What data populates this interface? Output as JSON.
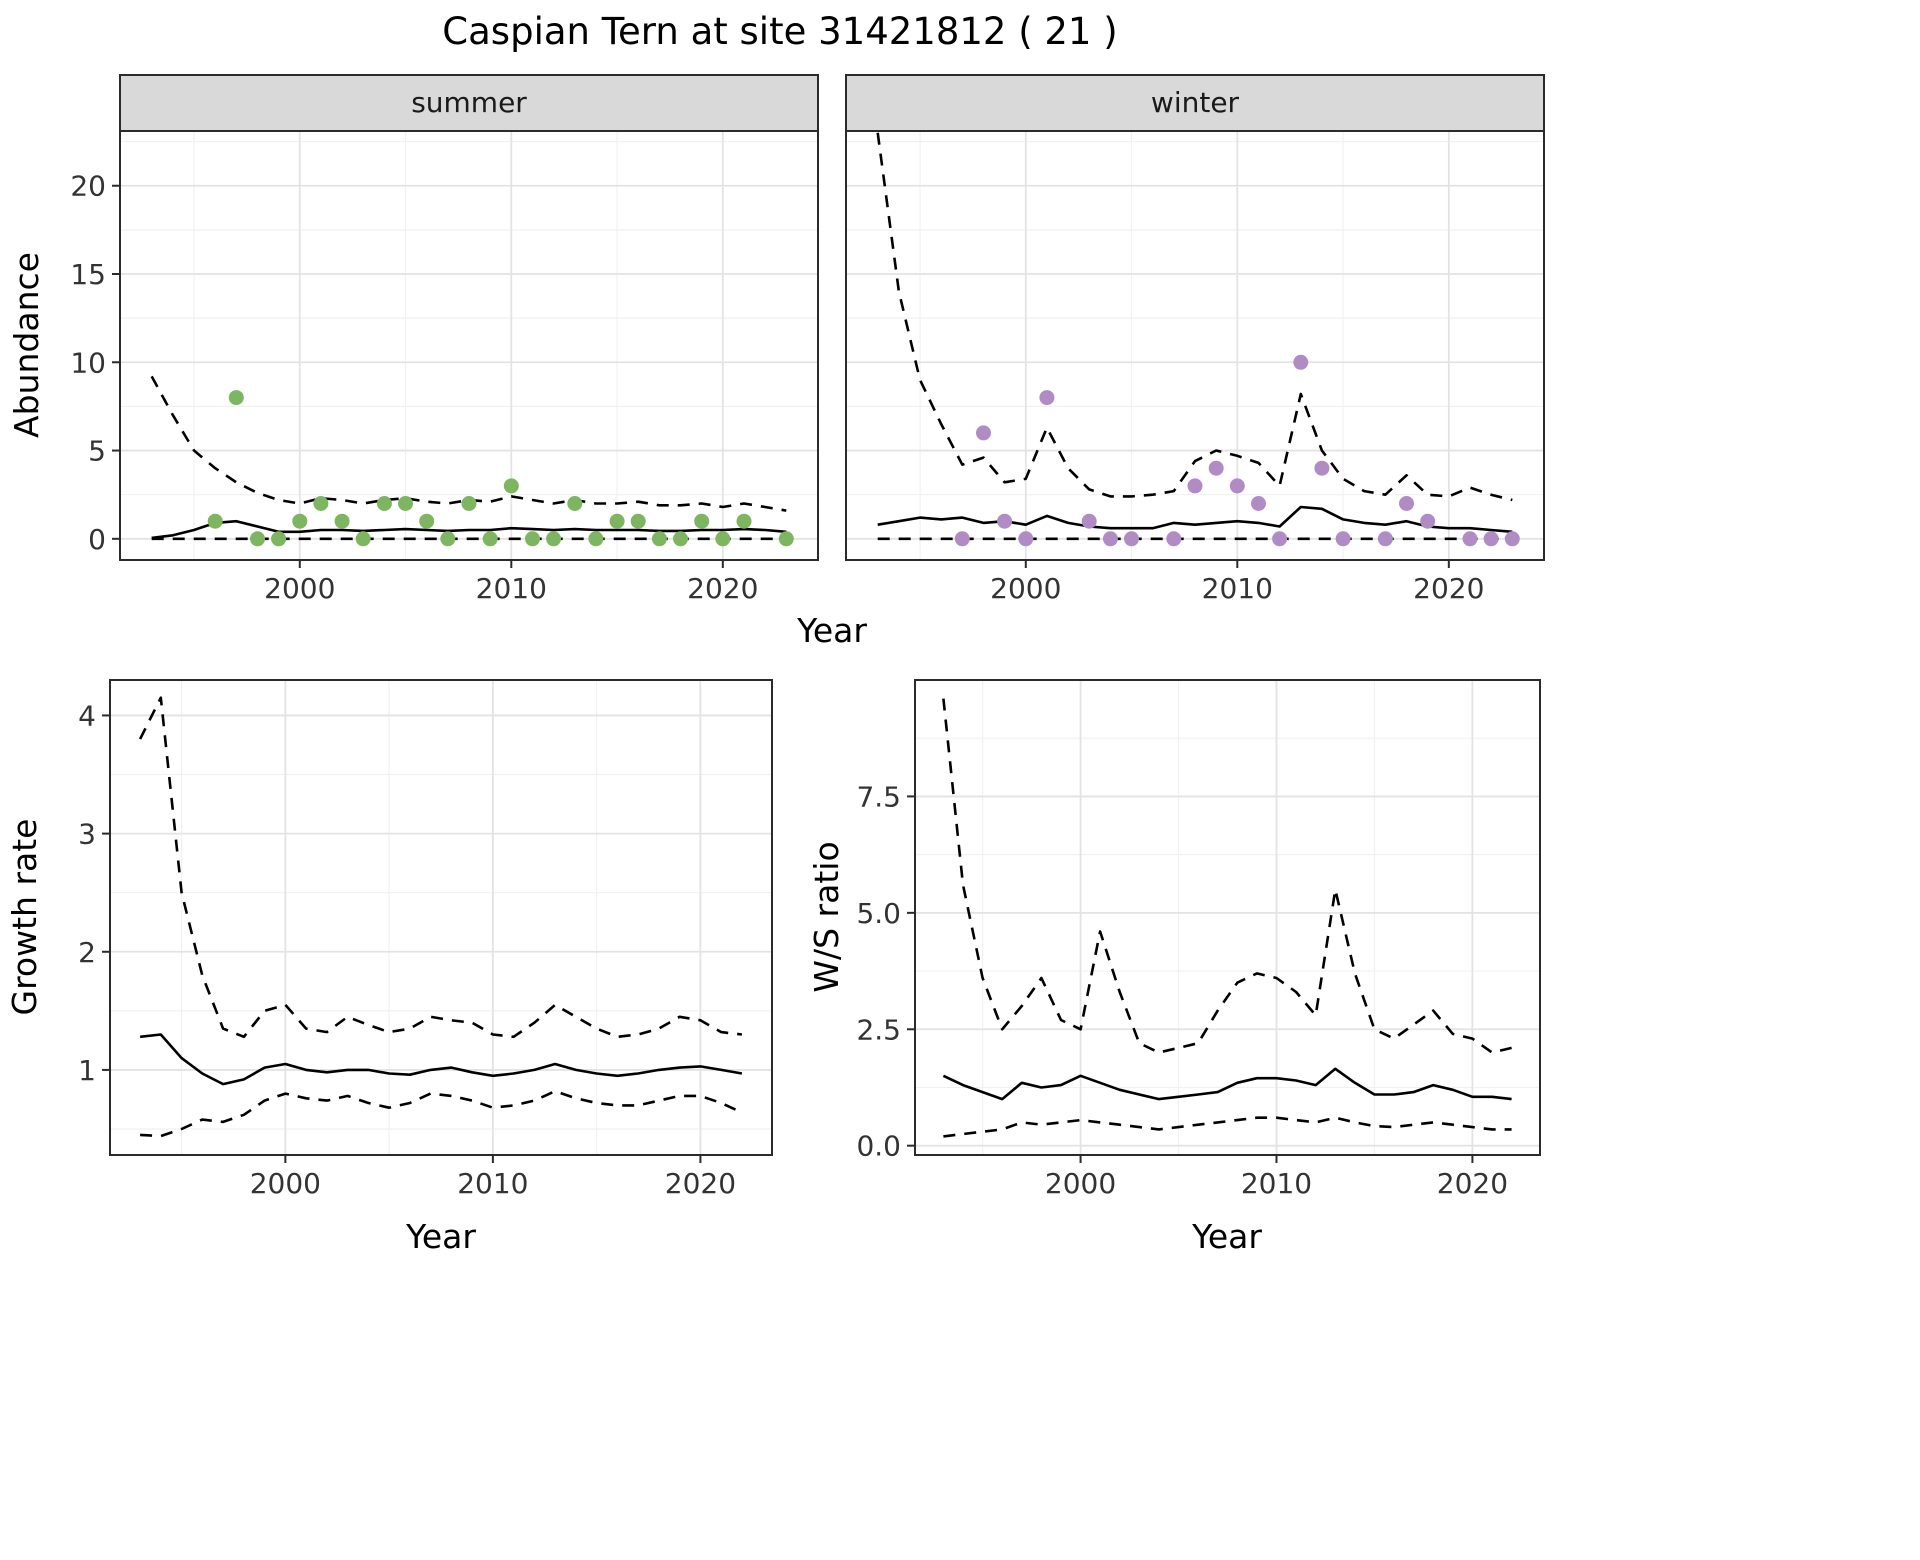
{
  "title": "Caspian Tern at site 31421812 ( 21 )",
  "colors": {
    "summer_points": "#7db560",
    "winter_points": "#b18cc4",
    "line": "#000000",
    "grid_major": "#e3e3e3",
    "grid_minor": "#f1f1f1",
    "panel_border": "#2b2b2b",
    "strip_bg": "#d9d9d9",
    "tick_text": "#333333"
  },
  "chart_data": [
    {
      "id": "abundance-summer",
      "type": "line",
      "facet_label": "summer",
      "xlabel": "Year",
      "ylabel": "Abundance",
      "xlim": [
        1991.5,
        2024.5
      ],
      "ylim": [
        -1.2,
        23.1
      ],
      "xtick_values": [
        2000,
        2010,
        2020
      ],
      "xtick_labels": [
        "2000",
        "2010",
        "2020"
      ],
      "xtick_minor": [
        1995,
        2005,
        2015
      ],
      "ytick_values": [
        0,
        5,
        10,
        15,
        20
      ],
      "ytick_labels": [
        "0",
        "5",
        "10",
        "15",
        "20"
      ],
      "ytick_minor": [
        2.5,
        7.5,
        12.5,
        17.5,
        22.5
      ],
      "series": [
        {
          "name": "upper-ci",
          "style": "dashed",
          "x": [
            1993,
            1994,
            1995,
            1996,
            1997,
            1998,
            1999,
            2000,
            2001,
            2002,
            2003,
            2004,
            2005,
            2006,
            2007,
            2008,
            2009,
            2010,
            2011,
            2012,
            2013,
            2014,
            2015,
            2016,
            2017,
            2018,
            2019,
            2020,
            2021,
            2022,
            2023
          ],
          "y": [
            9.2,
            7.0,
            5.0,
            4.0,
            3.2,
            2.6,
            2.2,
            2.0,
            2.3,
            2.2,
            2.0,
            2.2,
            2.3,
            2.1,
            2.0,
            2.2,
            2.1,
            2.4,
            2.2,
            2.0,
            2.2,
            2.0,
            2.0,
            2.1,
            1.9,
            1.9,
            2.0,
            1.8,
            2.0,
            1.8,
            1.6
          ]
        },
        {
          "name": "median",
          "style": "solid",
          "x": [
            1993,
            1994,
            1995,
            1996,
            1997,
            1998,
            1999,
            2000,
            2001,
            2002,
            2003,
            2004,
            2005,
            2006,
            2007,
            2008,
            2009,
            2010,
            2011,
            2012,
            2013,
            2014,
            2015,
            2016,
            2017,
            2018,
            2019,
            2020,
            2021,
            2022,
            2023
          ],
          "y": [
            0.05,
            0.2,
            0.5,
            0.9,
            1.0,
            0.7,
            0.4,
            0.4,
            0.5,
            0.5,
            0.45,
            0.5,
            0.55,
            0.5,
            0.45,
            0.5,
            0.5,
            0.6,
            0.55,
            0.5,
            0.55,
            0.5,
            0.5,
            0.5,
            0.45,
            0.45,
            0.5,
            0.5,
            0.55,
            0.5,
            0.4
          ]
        },
        {
          "name": "lower-ci",
          "style": "dashed",
          "x": [
            1993,
            1994,
            1995,
            1996,
            1997,
            1998,
            1999,
            2000,
            2001,
            2002,
            2003,
            2004,
            2005,
            2006,
            2007,
            2008,
            2009,
            2010,
            2011,
            2012,
            2013,
            2014,
            2015,
            2016,
            2017,
            2018,
            2019,
            2020,
            2021,
            2022,
            2023
          ],
          "y": [
            0,
            0,
            0,
            0,
            0,
            0,
            0,
            0,
            0,
            0,
            0,
            0,
            0,
            0,
            0,
            0,
            0,
            0,
            0,
            0,
            0,
            0,
            0,
            0,
            0,
            0,
            0,
            0,
            0,
            0,
            0
          ]
        }
      ],
      "points": {
        "name": "observed-counts-summer",
        "color": "#7db560",
        "x": [
          1996,
          1997,
          1998,
          1999,
          2000,
          2001,
          2002,
          2003,
          2004,
          2005,
          2006,
          2007,
          2008,
          2009,
          2010,
          2011,
          2012,
          2013,
          2014,
          2015,
          2016,
          2017,
          2018,
          2019,
          2020,
          2021,
          2023
        ],
        "y": [
          1,
          8,
          0,
          0,
          1,
          2,
          1,
          0,
          2,
          2,
          1,
          0,
          2,
          0,
          3,
          0,
          0,
          2,
          0,
          1,
          1,
          0,
          0,
          1,
          0,
          1,
          0
        ]
      }
    },
    {
      "id": "abundance-winter",
      "type": "line",
      "facet_label": "winter",
      "xlabel": "Year",
      "ylabel": "Abundance",
      "xlim": [
        1991.5,
        2024.5
      ],
      "ylim": [
        -1.2,
        23.1
      ],
      "xtick_values": [
        2000,
        2010,
        2020
      ],
      "xtick_labels": [
        "2000",
        "2010",
        "2020"
      ],
      "xtick_minor": [
        1995,
        2005,
        2015
      ],
      "ytick_values": [
        0,
        5,
        10,
        15,
        20
      ],
      "ytick_labels": [
        "0",
        "5",
        "10",
        "15",
        "20"
      ],
      "ytick_minor": [
        2.5,
        7.5,
        12.5,
        17.5,
        22.5
      ],
      "series": [
        {
          "name": "upper-ci",
          "style": "dashed",
          "x": [
            1993,
            1994,
            1995,
            1996,
            1997,
            1998,
            1999,
            2000,
            2001,
            2002,
            2003,
            2004,
            2005,
            2006,
            2007,
            2008,
            2009,
            2010,
            2011,
            2012,
            2013,
            2014,
            2015,
            2016,
            2017,
            2018,
            2019,
            2020,
            2021,
            2022,
            2023
          ],
          "y": [
            23,
            14,
            9,
            6.5,
            4.2,
            4.6,
            3.2,
            3.4,
            6.3,
            4.0,
            2.8,
            2.4,
            2.4,
            2.5,
            2.7,
            4.4,
            5.0,
            4.7,
            4.3,
            3.0,
            8.2,
            5.0,
            3.4,
            2.7,
            2.5,
            3.6,
            2.5,
            2.4,
            2.9,
            2.5,
            2.2
          ]
        },
        {
          "name": "median",
          "style": "solid",
          "x": [
            1993,
            1994,
            1995,
            1996,
            1997,
            1998,
            1999,
            2000,
            2001,
            2002,
            2003,
            2004,
            2005,
            2006,
            2007,
            2008,
            2009,
            2010,
            2011,
            2012,
            2013,
            2014,
            2015,
            2016,
            2017,
            2018,
            2019,
            2020,
            2021,
            2022,
            2023
          ],
          "y": [
            0.8,
            1.0,
            1.2,
            1.1,
            1.2,
            0.9,
            1.0,
            0.8,
            1.3,
            0.9,
            0.7,
            0.6,
            0.6,
            0.6,
            0.9,
            0.8,
            0.9,
            1.0,
            0.9,
            0.7,
            1.8,
            1.7,
            1.1,
            0.9,
            0.8,
            1.0,
            0.7,
            0.6,
            0.6,
            0.5,
            0.4
          ]
        },
        {
          "name": "lower-ci",
          "style": "dashed",
          "x": [
            1993,
            1994,
            1995,
            1996,
            1997,
            1998,
            1999,
            2000,
            2001,
            2002,
            2003,
            2004,
            2005,
            2006,
            2007,
            2008,
            2009,
            2010,
            2011,
            2012,
            2013,
            2014,
            2015,
            2016,
            2017,
            2018,
            2019,
            2020,
            2021,
            2022,
            2023
          ],
          "y": [
            0,
            0,
            0,
            0,
            0,
            0,
            0,
            0,
            0,
            0,
            0,
            0,
            0,
            0,
            0,
            0,
            0,
            0,
            0,
            0,
            0,
            0,
            0,
            0,
            0,
            0,
            0,
            0,
            0,
            0,
            0
          ]
        }
      ],
      "points": {
        "name": "observed-counts-winter",
        "color": "#b18cc4",
        "x": [
          1997,
          1998,
          1999,
          2000,
          2001,
          2003,
          2004,
          2005,
          2007,
          2008,
          2009,
          2010,
          2011,
          2012,
          2013,
          2014,
          2015,
          2017,
          2018,
          2019,
          2021,
          2022,
          2023
        ],
        "y": [
          0,
          6,
          1,
          0,
          8,
          1,
          0,
          0,
          0,
          3,
          4,
          3,
          2,
          0,
          10,
          4,
          0,
          0,
          2,
          1,
          0,
          0,
          0
        ]
      }
    },
    {
      "id": "growth-rate",
      "type": "line",
      "facet_label": "",
      "xlabel": "Year",
      "ylabel": "Growth rate",
      "xlim": [
        1991.55,
        2023.45
      ],
      "ylim": [
        0.28,
        4.3
      ],
      "xtick_values": [
        2000,
        2010,
        2020
      ],
      "xtick_labels": [
        "2000",
        "2010",
        "2020"
      ],
      "xtick_minor": [
        1995,
        2005,
        2015
      ],
      "ytick_values": [
        1,
        2,
        3,
        4
      ],
      "ytick_labels": [
        "1",
        "2",
        "3",
        "4"
      ],
      "ytick_minor": [
        0.5,
        1.5,
        2.5,
        3.5
      ],
      "series": [
        {
          "name": "upper-ci",
          "style": "dashed",
          "x": [
            1993,
            1994,
            1995,
            1996,
            1997,
            1998,
            1999,
            2000,
            2001,
            2002,
            2003,
            2004,
            2005,
            2006,
            2007,
            2008,
            2009,
            2010,
            2011,
            2012,
            2013,
            2014,
            2015,
            2016,
            2017,
            2018,
            2019,
            2020,
            2021,
            2022
          ],
          "y": [
            3.8,
            4.15,
            2.5,
            1.8,
            1.35,
            1.28,
            1.5,
            1.55,
            1.35,
            1.32,
            1.45,
            1.38,
            1.32,
            1.35,
            1.45,
            1.42,
            1.4,
            1.3,
            1.28,
            1.4,
            1.55,
            1.45,
            1.35,
            1.28,
            1.3,
            1.35,
            1.45,
            1.42,
            1.32,
            1.3
          ]
        },
        {
          "name": "median",
          "style": "solid",
          "x": [
            1993,
            1994,
            1995,
            1996,
            1997,
            1998,
            1999,
            2000,
            2001,
            2002,
            2003,
            2004,
            2005,
            2006,
            2007,
            2008,
            2009,
            2010,
            2011,
            2012,
            2013,
            2014,
            2015,
            2016,
            2017,
            2018,
            2019,
            2020,
            2021,
            2022
          ],
          "y": [
            1.28,
            1.3,
            1.1,
            0.97,
            0.88,
            0.92,
            1.02,
            1.05,
            1.0,
            0.98,
            1.0,
            1.0,
            0.97,
            0.96,
            1.0,
            1.02,
            0.98,
            0.95,
            0.97,
            1.0,
            1.05,
            1.0,
            0.97,
            0.95,
            0.97,
            1.0,
            1.02,
            1.03,
            1.0,
            0.97
          ]
        },
        {
          "name": "lower-ci",
          "style": "dashed",
          "x": [
            1993,
            1994,
            1995,
            1996,
            1997,
            1998,
            1999,
            2000,
            2001,
            2002,
            2003,
            2004,
            2005,
            2006,
            2007,
            2008,
            2009,
            2010,
            2011,
            2012,
            2013,
            2014,
            2015,
            2016,
            2017,
            2018,
            2019,
            2020,
            2021,
            2022
          ],
          "y": [
            0.45,
            0.44,
            0.5,
            0.58,
            0.56,
            0.62,
            0.74,
            0.8,
            0.76,
            0.74,
            0.78,
            0.72,
            0.68,
            0.72,
            0.8,
            0.78,
            0.74,
            0.68,
            0.7,
            0.74,
            0.82,
            0.76,
            0.72,
            0.7,
            0.7,
            0.74,
            0.78,
            0.78,
            0.72,
            0.64
          ]
        }
      ],
      "points": null
    },
    {
      "id": "ws-ratio",
      "type": "line",
      "facet_label": "",
      "xlabel": "Year",
      "ylabel": "W/S ratio",
      "xlim": [
        1991.55,
        2023.45
      ],
      "ylim": [
        -0.2,
        10.0
      ],
      "xtick_values": [
        2000,
        2010,
        2020
      ],
      "xtick_labels": [
        "2000",
        "2010",
        "2020"
      ],
      "xtick_minor": [
        1995,
        2005,
        2015
      ],
      "ytick_values": [
        0.0,
        2.5,
        5.0,
        7.5
      ],
      "ytick_labels": [
        "0.0",
        "2.5",
        "5.0",
        "7.5"
      ],
      "ytick_minor": [
        1.25,
        3.75,
        6.25,
        8.75
      ],
      "series": [
        {
          "name": "upper-ci",
          "style": "dashed",
          "x": [
            1993,
            1994,
            1995,
            1996,
            1997,
            1998,
            1999,
            2000,
            2001,
            2002,
            2003,
            2004,
            2005,
            2006,
            2007,
            2008,
            2009,
            2010,
            2011,
            2012,
            2013,
            2014,
            2015,
            2016,
            2017,
            2018,
            2019,
            2020,
            2021,
            2022
          ],
          "y": [
            9.6,
            5.6,
            3.6,
            2.5,
            3.0,
            3.6,
            2.7,
            2.5,
            4.6,
            3.3,
            2.2,
            2.0,
            2.1,
            2.2,
            2.9,
            3.5,
            3.7,
            3.6,
            3.3,
            2.8,
            5.5,
            3.7,
            2.5,
            2.3,
            2.6,
            2.9,
            2.4,
            2.3,
            2.0,
            2.1
          ]
        },
        {
          "name": "median",
          "style": "solid",
          "x": [
            1993,
            1994,
            1995,
            1996,
            1997,
            1998,
            1999,
            2000,
            2001,
            2002,
            2003,
            2004,
            2005,
            2006,
            2007,
            2008,
            2009,
            2010,
            2011,
            2012,
            2013,
            2014,
            2015,
            2016,
            2017,
            2018,
            2019,
            2020,
            2021,
            2022
          ],
          "y": [
            1.5,
            1.3,
            1.15,
            1.0,
            1.35,
            1.25,
            1.3,
            1.5,
            1.35,
            1.2,
            1.1,
            1.0,
            1.05,
            1.1,
            1.15,
            1.35,
            1.45,
            1.45,
            1.4,
            1.3,
            1.65,
            1.35,
            1.1,
            1.1,
            1.15,
            1.3,
            1.2,
            1.05,
            1.05,
            1.0
          ]
        },
        {
          "name": "lower-ci",
          "style": "dashed",
          "x": [
            1993,
            1994,
            1995,
            1996,
            1997,
            1998,
            1999,
            2000,
            2001,
            2002,
            2003,
            2004,
            2005,
            2006,
            2007,
            2008,
            2009,
            2010,
            2011,
            2012,
            2013,
            2014,
            2015,
            2016,
            2017,
            2018,
            2019,
            2020,
            2021,
            2022
          ],
          "y": [
            0.2,
            0.25,
            0.3,
            0.35,
            0.5,
            0.45,
            0.5,
            0.55,
            0.5,
            0.45,
            0.4,
            0.35,
            0.4,
            0.45,
            0.5,
            0.55,
            0.6,
            0.6,
            0.55,
            0.5,
            0.6,
            0.5,
            0.42,
            0.4,
            0.45,
            0.5,
            0.45,
            0.4,
            0.35,
            0.35
          ]
        }
      ],
      "points": null
    }
  ]
}
